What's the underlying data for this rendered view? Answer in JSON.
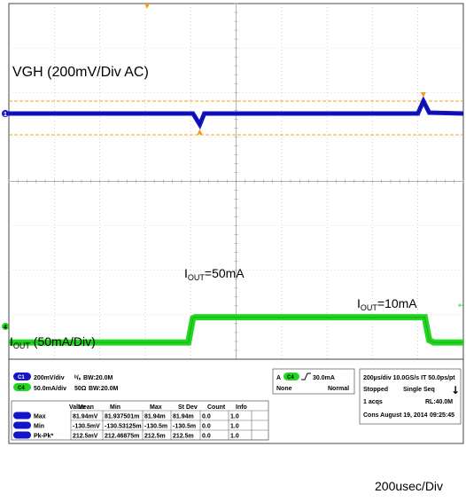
{
  "chart_data": {
    "type": "line",
    "title": "",
    "x_unit_per_div": "200usec/Div",
    "divisions": {
      "x": 10,
      "y": 8
    },
    "grid": true,
    "series": [
      {
        "name": "VGH (200mV/Div  AC)",
        "color": "#1414c8",
        "scale_label": "200mV/div",
        "points_div": [
          [
            0,
            0
          ],
          [
            4.05,
            0
          ],
          [
            4.2,
            -0.25
          ],
          [
            4.3,
            0
          ],
          [
            9.0,
            0
          ],
          [
            9.12,
            0.28
          ],
          [
            9.25,
            0.02
          ],
          [
            10,
            0
          ]
        ]
      },
      {
        "name_prefix": "I",
        "name_sub": "OUT",
        "name_suffix": " (50mA/Div)",
        "color": "#22d622",
        "scale_label": "50.0mA/div",
        "points_div": [
          [
            0,
            -5.15
          ],
          [
            3.95,
            -5.15
          ],
          [
            4.05,
            -4.6
          ],
          [
            4.1,
            -4.58
          ],
          [
            9.15,
            -4.58
          ],
          [
            9.25,
            -5.1
          ],
          [
            9.35,
            -5.15
          ],
          [
            10,
            -5.15
          ]
        ]
      }
    ],
    "annotations": [
      {
        "prefix": "I",
        "sub": "OUT",
        "suffix": "=50mA"
      },
      {
        "prefix": "I",
        "sub": "OUT",
        "suffix": "=10mA"
      }
    ],
    "channel1_ground_label": "1",
    "channel4_ground_label": "4"
  },
  "panel": {
    "ch1": {
      "chip": "C1",
      "scale": "200mV/div",
      "bw_symbol": "ᵇ/ₛ",
      "bw": "BW:20.0M"
    },
    "ch4": {
      "chip": "C4",
      "coupling": "50Ω",
      "scale": "50.0mA/div",
      "bw": "BW:20.0M"
    },
    "trigger": {
      "mode_chip": "A",
      "source_chip": "C4",
      "level": "30.0mA",
      "coupling": "None",
      "type": "Normal"
    },
    "acq": {
      "line1": "200µs/div  10.0GS/s  IT  50.0ps/pt",
      "state": "Stopped",
      "seq": "Single Seq",
      "acqs": "1 acqs",
      "rl": "RL:40.0M",
      "cons": "Cons  August 19, 2014",
      "time": "09:25:45"
    },
    "measure": {
      "headers": [
        "Value",
        "Mean",
        "Min",
        "Max",
        "St Dev",
        "Count",
        "Info"
      ],
      "rows": [
        {
          "label": "Max",
          "cells": [
            "81.94mV",
            "81.937501m",
            "81.94m",
            "81.94m",
            "0.0",
            "1.0",
            ""
          ]
        },
        {
          "label": "Min",
          "cells": [
            "-130.5mV",
            "-130.53125m",
            "-130.5m",
            "-130.5m",
            "0.0",
            "1.0",
            ""
          ]
        },
        {
          "label": "Pk-Pk*",
          "cells": [
            "212.5mV",
            "212.46875m",
            "212.5m",
            "212.5m",
            "0.0",
            "1.0",
            ""
          ]
        }
      ]
    }
  },
  "timebase_label": "200usec/Div",
  "colors": {
    "ch1": "#1414c8",
    "ch4": "#22d622",
    "cursor": "#f0a020",
    "grid": "#b8b8b8"
  }
}
